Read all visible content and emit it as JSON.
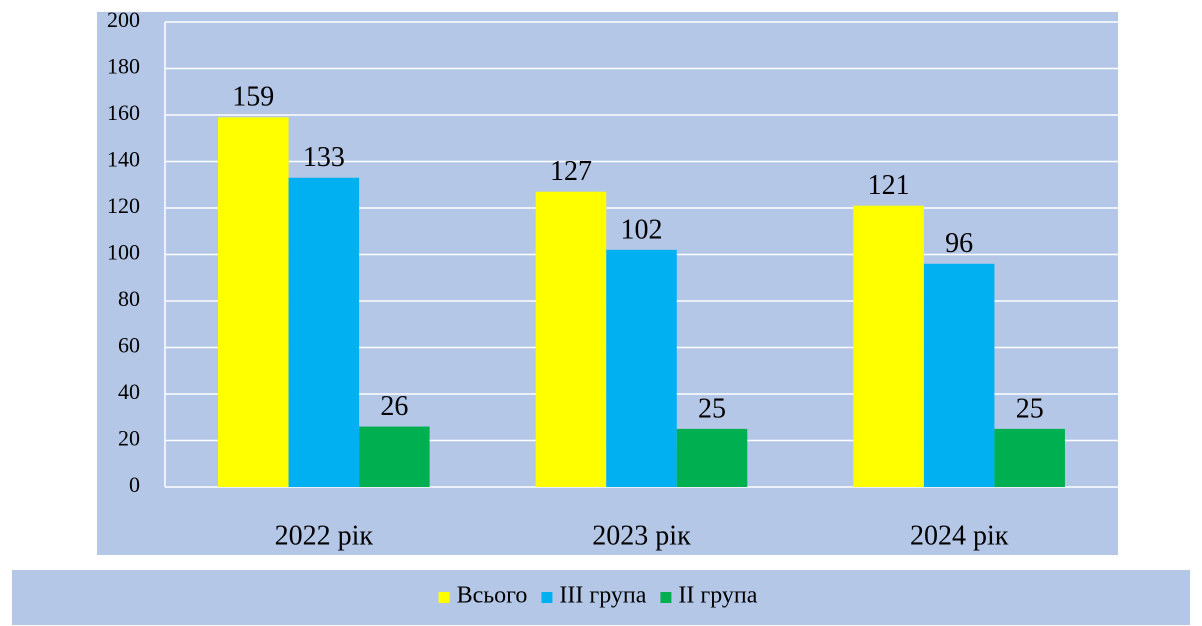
{
  "chart_data": {
    "type": "bar",
    "categories": [
      "2022 рік",
      "2023 рік",
      "2024 рік"
    ],
    "series": [
      {
        "name": "Всього",
        "color": "#ffff00",
        "values": [
          159,
          127,
          121
        ]
      },
      {
        "name": "III група",
        "color": "#00b0f0",
        "values": [
          133,
          102,
          96
        ]
      },
      {
        "name": "II група",
        "color": "#00b050",
        "values": [
          26,
          25,
          25
        ]
      }
    ],
    "ylim": [
      0,
      200
    ],
    "yticks": [
      0,
      20,
      40,
      60,
      80,
      100,
      120,
      140,
      160,
      180,
      200
    ],
    "grid": true,
    "legend": "bottom"
  }
}
